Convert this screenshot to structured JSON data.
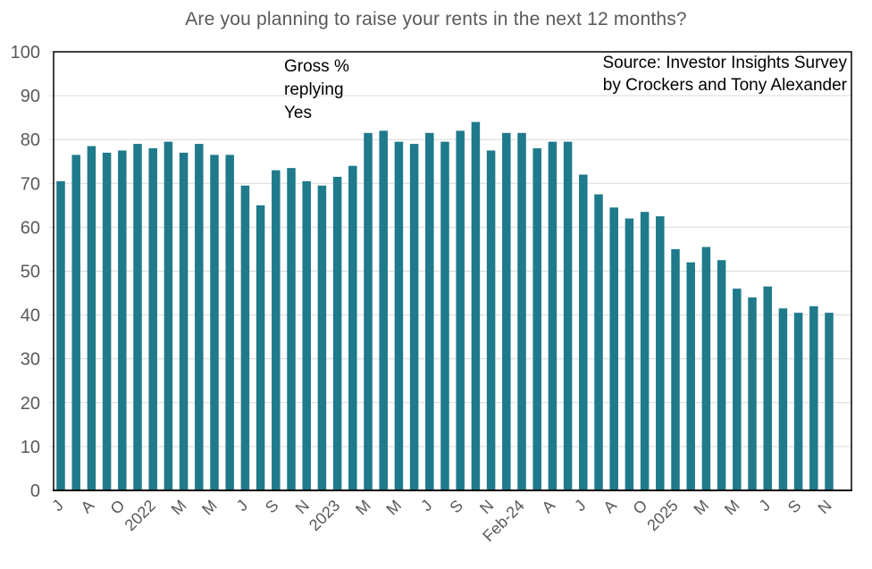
{
  "chart_data": {
    "type": "bar",
    "title": "Are you planning to raise your rents in the next 12 months?",
    "annotation": "Gross %\nreplying\nYes",
    "source": "Source: Investor Insights Survey\nby Crockers and Tony Alexander",
    "categories": [
      "J",
      "",
      "A",
      "",
      "O",
      "",
      "2022",
      "",
      "M",
      "",
      "M",
      "",
      "J",
      "",
      "S",
      "",
      "N",
      "",
      "2023",
      "",
      "M",
      "",
      "M",
      "",
      "J",
      "",
      "S",
      "",
      "N",
      "",
      "Feb-24",
      "",
      "A",
      "",
      "J",
      "",
      "A",
      "",
      "O",
      "",
      "2025",
      "",
      "M",
      "",
      "M",
      "",
      "J",
      "",
      "S",
      "",
      "N"
    ],
    "values": [
      70.5,
      76.5,
      78.5,
      77,
      77.5,
      79,
      78,
      79.5,
      77,
      79,
      76.5,
      76.5,
      69.5,
      65,
      73,
      73.5,
      70.5,
      69.5,
      71.5,
      74,
      81.5,
      82,
      79.5,
      79,
      81.5,
      79.5,
      82,
      84,
      77.5,
      81.5,
      81.5,
      78,
      79.5,
      79.5,
      72,
      67.5,
      64.5,
      62,
      63.5,
      62.5,
      55,
      52,
      55.5,
      52.5,
      46,
      44,
      46.5,
      41.5,
      40.5,
      42,
      40.5
    ],
    "y_ticks": [
      0,
      10,
      20,
      30,
      40,
      50,
      60,
      70,
      80,
      90,
      100
    ],
    "ylim": [
      0,
      100
    ],
    "grid": true,
    "legend": "none",
    "bar_color": "#1F7A8B",
    "grid_color": "#D9D9D9",
    "axis_text_color": "#595959",
    "title_color": "#595959",
    "annotation_color": "#000000",
    "source_color": "#000000",
    "border_color": "#000000"
  }
}
